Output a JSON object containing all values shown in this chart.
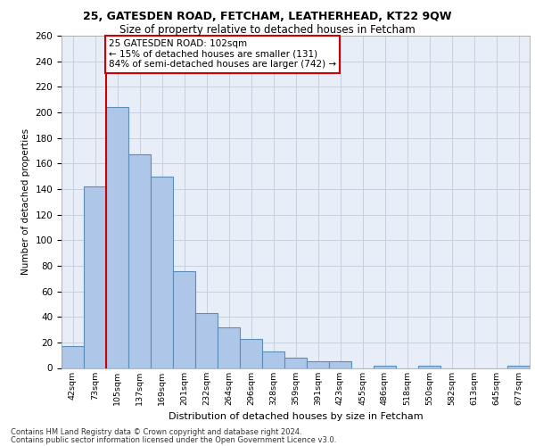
{
  "title1": "25, GATESDEN ROAD, FETCHAM, LEATHERHEAD, KT22 9QW",
  "title2": "Size of property relative to detached houses in Fetcham",
  "xlabel": "Distribution of detached houses by size in Fetcham",
  "ylabel": "Number of detached properties",
  "bar_labels": [
    "42sqm",
    "73sqm",
    "105sqm",
    "137sqm",
    "169sqm",
    "201sqm",
    "232sqm",
    "264sqm",
    "296sqm",
    "328sqm",
    "359sqm",
    "391sqm",
    "423sqm",
    "455sqm",
    "486sqm",
    "518sqm",
    "550sqm",
    "582sqm",
    "613sqm",
    "645sqm",
    "677sqm"
  ],
  "bar_values": [
    17,
    142,
    204,
    167,
    150,
    76,
    43,
    32,
    23,
    13,
    8,
    5,
    5,
    0,
    2,
    0,
    2,
    0,
    0,
    0,
    2
  ],
  "bar_color": "#aec6e8",
  "bar_edge_color": "#5b8db8",
  "grid_color": "#c8d0e0",
  "background_color": "#e8eef8",
  "annotation_line1": "25 GATESDEN ROAD: 102sqm",
  "annotation_line2": "← 15% of detached houses are smaller (131)",
  "annotation_line3": "84% of semi-detached houses are larger (742) →",
  "annotation_box_facecolor": "#ffffff",
  "annotation_box_edgecolor": "#cc0000",
  "vline_color": "#cc0000",
  "vline_x_index": 2,
  "ylim": [
    0,
    260
  ],
  "yticks": [
    0,
    20,
    40,
    60,
    80,
    100,
    120,
    140,
    160,
    180,
    200,
    220,
    240,
    260
  ],
  "footnote1": "Contains HM Land Registry data © Crown copyright and database right 2024.",
  "footnote2": "Contains public sector information licensed under the Open Government Licence v3.0."
}
